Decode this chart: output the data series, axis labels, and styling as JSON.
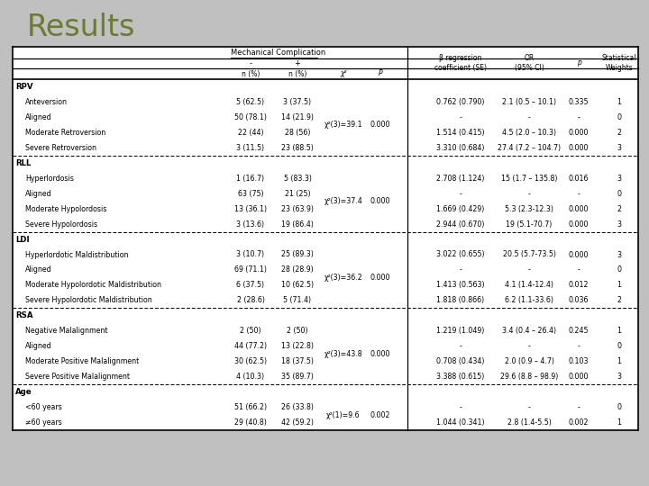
{
  "title": "Results",
  "title_color": "#6b7c2e",
  "bg_color": "#c0c0c0",
  "sections": [
    {
      "name": "RPV",
      "rows": [
        {
          "label": "Anteversion",
          "minus": "5 (62.5)",
          "plus": "3 (37.5)",
          "chi": "",
          "p_chi": "",
          "beta": "0.762 (0.790)",
          "or": "2.1 (0.5 – 10.1)",
          "p": "0.335",
          "w": "1"
        },
        {
          "label": "Aligned",
          "minus": "50 (78.1)",
          "plus": "14 (21.9)",
          "chi": "χ²(3)=39.1",
          "p_chi": "0.000",
          "beta": "-",
          "or": "-",
          "p": "-",
          "w": "0"
        },
        {
          "label": "Moderate Retroversion",
          "minus": "22 (44)",
          "plus": "28 (56)",
          "chi": "",
          "p_chi": "",
          "beta": "1.514 (0.415)",
          "or": "4.5 (2.0 – 10.3)",
          "p": "0.000",
          "w": "2"
        },
        {
          "label": "Severe Retroversion",
          "minus": "3 (11.5)",
          "plus": "23 (88.5)",
          "chi": "",
          "p_chi": "",
          "beta": "3.310 (0.684)",
          "or": "27.4 (7.2 – 104.7)",
          "p": "0.000",
          "w": "3"
        }
      ]
    },
    {
      "name": "RLL",
      "rows": [
        {
          "label": "Hyperlordosis",
          "minus": "1 (16.7)",
          "plus": "5 (83.3)",
          "chi": "",
          "p_chi": "",
          "beta": "2.708 (1.124)",
          "or": "15 (1.7 – 135.8)",
          "p": "0.016",
          "w": "3"
        },
        {
          "label": "Aligned",
          "minus": "63 (75)",
          "plus": "21 (25)",
          "chi": "χ²(3)=37.4",
          "p_chi": "0.000",
          "beta": "-",
          "or": "-",
          "p": "-",
          "w": "0"
        },
        {
          "label": "Moderate Hypolordosis",
          "minus": "13 (36.1)",
          "plus": "23 (63.9)",
          "chi": "",
          "p_chi": "",
          "beta": "1.669 (0.429)",
          "or": "5.3 (2.3-12.3)",
          "p": "0.000",
          "w": "2"
        },
        {
          "label": "Severe Hypolordosis",
          "minus": "3 (13.6)",
          "plus": "19 (86.4)",
          "chi": "",
          "p_chi": "",
          "beta": "2.944 (0.670)",
          "or": "19 (5.1-70.7)",
          "p": "0.000",
          "w": "3"
        }
      ]
    },
    {
      "name": "LDI",
      "rows": [
        {
          "label": "Hyperlordotic Maldistribution",
          "minus": "3 (10.7)",
          "plus": "25 (89.3)",
          "chi": "",
          "p_chi": "",
          "beta": "3.022 (0.655)",
          "or": "20.5 (5.7-73.5)",
          "p": "0.000",
          "w": "3"
        },
        {
          "label": "Aligned",
          "minus": "69 (71.1)",
          "plus": "28 (28.9)",
          "chi": "χ²(3)=36.2",
          "p_chi": "0.000",
          "beta": "-",
          "or": "-",
          "p": "-",
          "w": "0"
        },
        {
          "label": "Moderate Hypolordotic Maldistribution",
          "minus": "6 (37.5)",
          "plus": "10 (62.5)",
          "chi": "",
          "p_chi": "",
          "beta": "1.413 (0.563)",
          "or": "4.1 (1.4-12.4)",
          "p": "0.012",
          "w": "1"
        },
        {
          "label": "Severe Hypolordotic Maldistribution",
          "minus": "2 (28.6)",
          "plus": "5 (71.4)",
          "chi": "",
          "p_chi": "",
          "beta": "1.818 (0.866)",
          "or": "6.2 (1.1-33.6)",
          "p": "0.036",
          "w": "2"
        }
      ]
    },
    {
      "name": "RSA",
      "rows": [
        {
          "label": "Negative Malalignment",
          "minus": "2 (50)",
          "plus": "2 (50)",
          "chi": "",
          "p_chi": "",
          "beta": "1.219 (1.049)",
          "or": "3.4 (0.4 – 26.4)",
          "p": "0.245",
          "w": "1"
        },
        {
          "label": "Aligned",
          "minus": "44 (77.2)",
          "plus": "13 (22.8)",
          "chi": "χ²(3)=43.8",
          "p_chi": "0.000",
          "beta": "-",
          "or": "-",
          "p": "-",
          "w": "0"
        },
        {
          "label": "Moderate Positive Malalignment",
          "minus": "30 (62.5)",
          "plus": "18 (37.5)",
          "chi": "",
          "p_chi": "",
          "beta": "0.708 (0.434)",
          "or": "2.0 (0.9 – 4.7)",
          "p": "0.103",
          "w": "1"
        },
        {
          "label": "Severe Positive Malalignment",
          "minus": "4 (10.3)",
          "plus": "35 (89.7)",
          "chi": "",
          "p_chi": "",
          "beta": "3.388 (0.615)",
          "or": "29.6 (8.8 – 98.9)",
          "p": "0.000",
          "w": "3"
        }
      ]
    },
    {
      "name": "Age",
      "rows": [
        {
          "label": "<60 years",
          "minus": "51 (66.2)",
          "plus": "26 (33.8)",
          "chi": "χ²(1)=9.6",
          "p_chi": "0.002",
          "beta": "-",
          "or": "-",
          "p": "-",
          "w": "0"
        },
        {
          "label": "≠60 years",
          "minus": "29 (40.8)",
          "plus": "42 (59.2)",
          "chi": "",
          "p_chi": "",
          "beta": "1.044 (0.341)",
          "or": "2.8 (1.4-5.5)",
          "p": "0.002",
          "w": "1"
        }
      ]
    }
  ]
}
